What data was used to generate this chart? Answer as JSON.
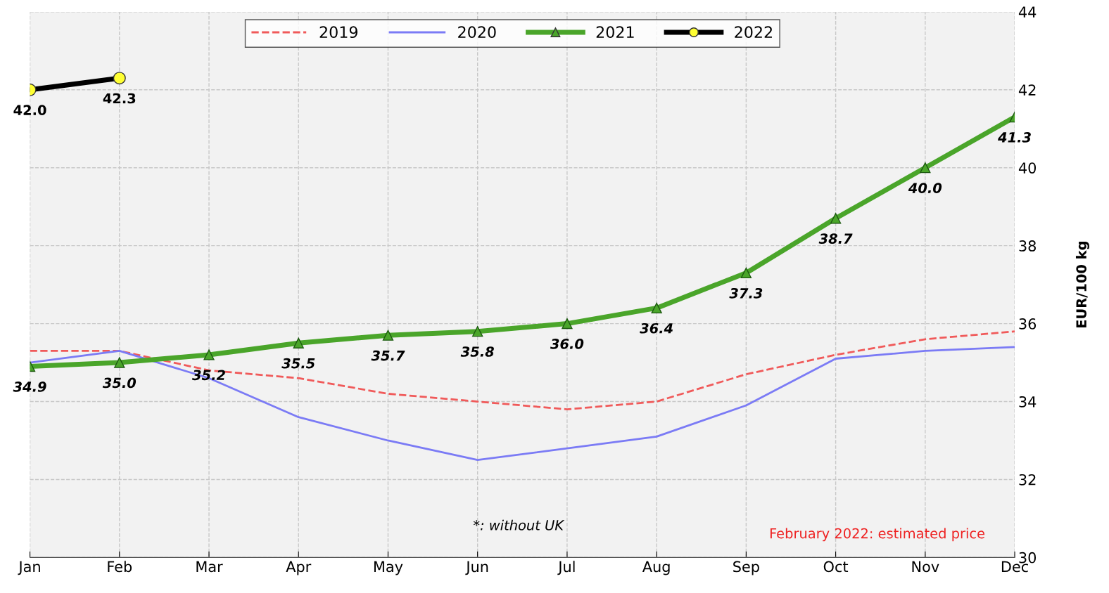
{
  "chart_data": {
    "type": "line",
    "ylabel": "EUR/100 kg",
    "categories": [
      "Jan",
      "Feb",
      "Mar",
      "Apr",
      "May",
      "Jun",
      "Jul",
      "Aug",
      "Sep",
      "Oct",
      "Nov",
      "Dec"
    ],
    "series": [
      {
        "name": "2019",
        "color": "#f05a5a",
        "line_style": "dashed",
        "marker": "none",
        "values": [
          35.3,
          35.3,
          34.8,
          34.6,
          34.2,
          34.0,
          33.8,
          34.0,
          34.7,
          35.2,
          35.6,
          35.8
        ]
      },
      {
        "name": "2020",
        "color": "#7b7bf5",
        "line_style": "solid",
        "marker": "none",
        "values": [
          35.0,
          35.3,
          34.6,
          33.6,
          33.0,
          32.5,
          32.8,
          33.1,
          33.9,
          35.1,
          35.3,
          35.4
        ]
      },
      {
        "name": "2021",
        "color": "#4aa52a",
        "line_style": "solid",
        "marker": "triangle",
        "values": [
          34.9,
          35.0,
          35.2,
          35.5,
          35.7,
          35.8,
          36.0,
          36.4,
          37.3,
          38.7,
          40.0,
          41.3
        ],
        "value_labels": [
          "34.9",
          "35.0",
          "35.2",
          "35.5",
          "35.7",
          "35.8",
          "36.0",
          "36.4",
          "37.3",
          "38.7",
          "40.0",
          "41.3"
        ]
      },
      {
        "name": "2022",
        "color": "#000000",
        "line_style": "solid",
        "marker": "circle",
        "values": [
          42.0,
          42.3,
          null,
          null,
          null,
          null,
          null,
          null,
          null,
          null,
          null,
          null
        ],
        "value_labels": [
          "42.0",
          "42.3",
          null,
          null,
          null,
          null,
          null,
          null,
          null,
          null,
          null,
          null
        ]
      }
    ],
    "ylim": [
      30,
      44
    ],
    "yticks": [
      30,
      32,
      34,
      36,
      38,
      40,
      42,
      44
    ],
    "grid": true,
    "legend": "top",
    "annotations": [
      "*: without UK",
      "February 2022: estimated price"
    ]
  }
}
